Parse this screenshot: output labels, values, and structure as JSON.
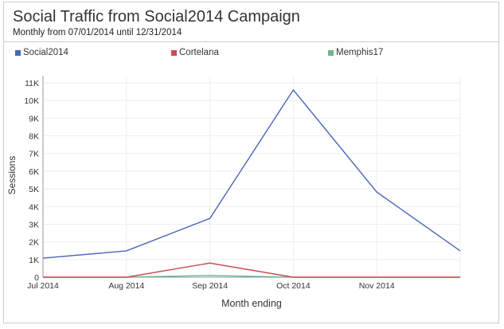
{
  "chart_data": {
    "type": "line",
    "title": "Social Traffic from Social2014 Campaign",
    "subtitle": "Monthly from 07/01/2014 until 12/31/2014",
    "xlabel": "Month ending",
    "ylabel": "Sessions",
    "x_tick_labels": [
      "Jul 2014",
      "Aug 2014",
      "Sep 2014",
      "Oct 2014",
      "Nov 2014"
    ],
    "y_tick_labels": [
      "0",
      "1K",
      "2K",
      "3K",
      "4K",
      "5K",
      "6K",
      "7K",
      "8K",
      "9K",
      "10K",
      "11K"
    ],
    "ylim": [
      0,
      11000
    ],
    "grid": true,
    "legend_position": "top",
    "series": [
      {
        "name": "Social2014",
        "color": "#4a66b8",
        "values": [
          1080,
          1490,
          3330,
          10600,
          4820,
          1490
        ]
      },
      {
        "name": "Cortelana",
        "color": "#cc4a55",
        "values": [
          0,
          0,
          800,
          0,
          0,
          0
        ]
      },
      {
        "name": "Memphis17",
        "color": "#6cb88a",
        "values": [
          0,
          0,
          100,
          0,
          0,
          0
        ]
      }
    ]
  }
}
